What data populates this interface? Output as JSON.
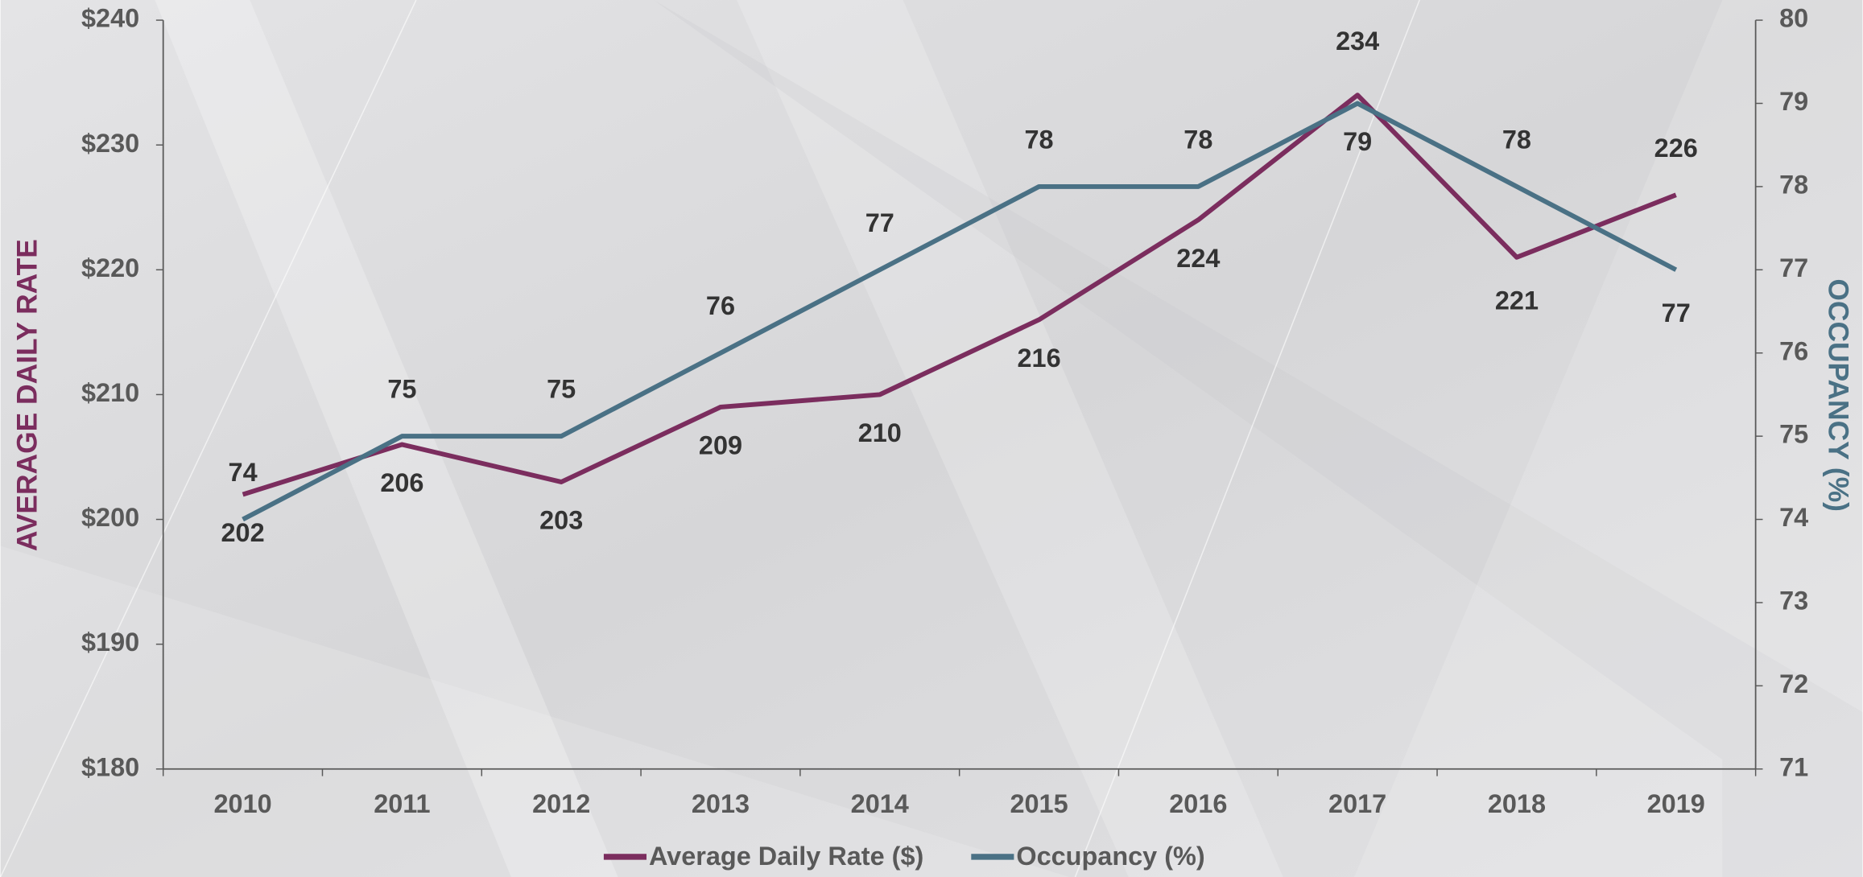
{
  "chart_data": {
    "type": "line",
    "categories": [
      "2010",
      "2011",
      "2012",
      "2013",
      "2014",
      "2015",
      "2016",
      "2017",
      "2018",
      "2019"
    ],
    "series": [
      {
        "name": "Average Daily Rate ($)",
        "color": "#7b2d5e",
        "values": [
          202,
          206,
          203,
          209,
          210,
          216,
          224,
          234,
          221,
          226
        ]
      },
      {
        "name": "Occupancy (%)",
        "color": "#4a7185",
        "axis": "y2",
        "values": [
          74,
          75,
          75,
          76,
          77,
          78,
          78,
          79,
          78,
          77
        ]
      }
    ],
    "ylabel": "AVERAGE DAILY RATE",
    "y2label": "OCCUPANCY (%)",
    "ylim": [
      180,
      240
    ],
    "yticks": [
      {
        "value": 180,
        "label": "$180"
      },
      {
        "value": 190,
        "label": "$190"
      },
      {
        "value": 200,
        "label": "$200"
      },
      {
        "value": 210,
        "label": "$210"
      },
      {
        "value": 220,
        "label": "$220"
      },
      {
        "value": 230,
        "label": "$230"
      },
      {
        "value": 240,
        "label": "$240"
      }
    ],
    "y2lim": [
      71,
      80
    ],
    "y2ticks": [
      71,
      72,
      73,
      74,
      75,
      76,
      77,
      78,
      79,
      80
    ],
    "legend": "bottom"
  }
}
